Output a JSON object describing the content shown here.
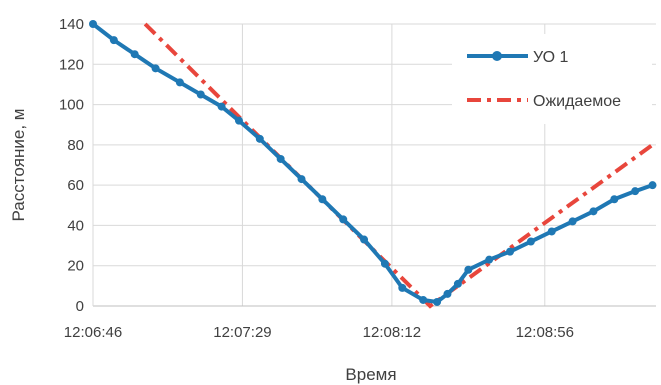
{
  "chart_data": {
    "type": "line",
    "xlabel": "Время",
    "ylabel": "Расстояние, м",
    "x_tick_labels": [
      "12:06:46",
      "12:07:29",
      "12:08:12",
      "12:08:56"
    ],
    "x_tick_values": [
      "12:06:46",
      "12:07:29",
      "12:08:12",
      "12:08:56"
    ],
    "xlim": [
      "12:06:46",
      "12:09:28"
    ],
    "ylim": [
      0,
      140
    ],
    "y_ticks": [
      0,
      20,
      40,
      60,
      80,
      100,
      120,
      140
    ],
    "grid": true,
    "legend_position": "top-right",
    "series": [
      {
        "name": "УО 1",
        "color": "#1f78b4",
        "style": "line-with-markers",
        "x": [
          "12:06:46",
          "12:06:52",
          "12:06:58",
          "12:07:04",
          "12:07:11",
          "12:07:17",
          "12:07:23",
          "12:07:28",
          "12:07:34",
          "12:07:40",
          "12:07:46",
          "12:07:52",
          "12:07:58",
          "12:08:04",
          "12:08:10",
          "12:08:15",
          "12:08:21",
          "12:08:25",
          "12:08:28",
          "12:08:31",
          "12:08:34",
          "12:08:40",
          "12:08:46",
          "12:08:52",
          "12:08:58",
          "12:09:04",
          "12:09:10",
          "12:09:16",
          "12:09:22",
          "12:09:27"
        ],
        "y": [
          140,
          132,
          125,
          118,
          111,
          105,
          99,
          92,
          83,
          73,
          63,
          53,
          43,
          33,
          21,
          9,
          3,
          2,
          6,
          11,
          18,
          23,
          27,
          32,
          37,
          42,
          47,
          53,
          57,
          60
        ]
      },
      {
        "name": "Ожидаемое",
        "color": "#e8463c",
        "style": "dash-dot",
        "x": [
          "12:07:01",
          "12:08:23",
          "12:09:27"
        ],
        "y": [
          140,
          0,
          80
        ]
      }
    ]
  }
}
